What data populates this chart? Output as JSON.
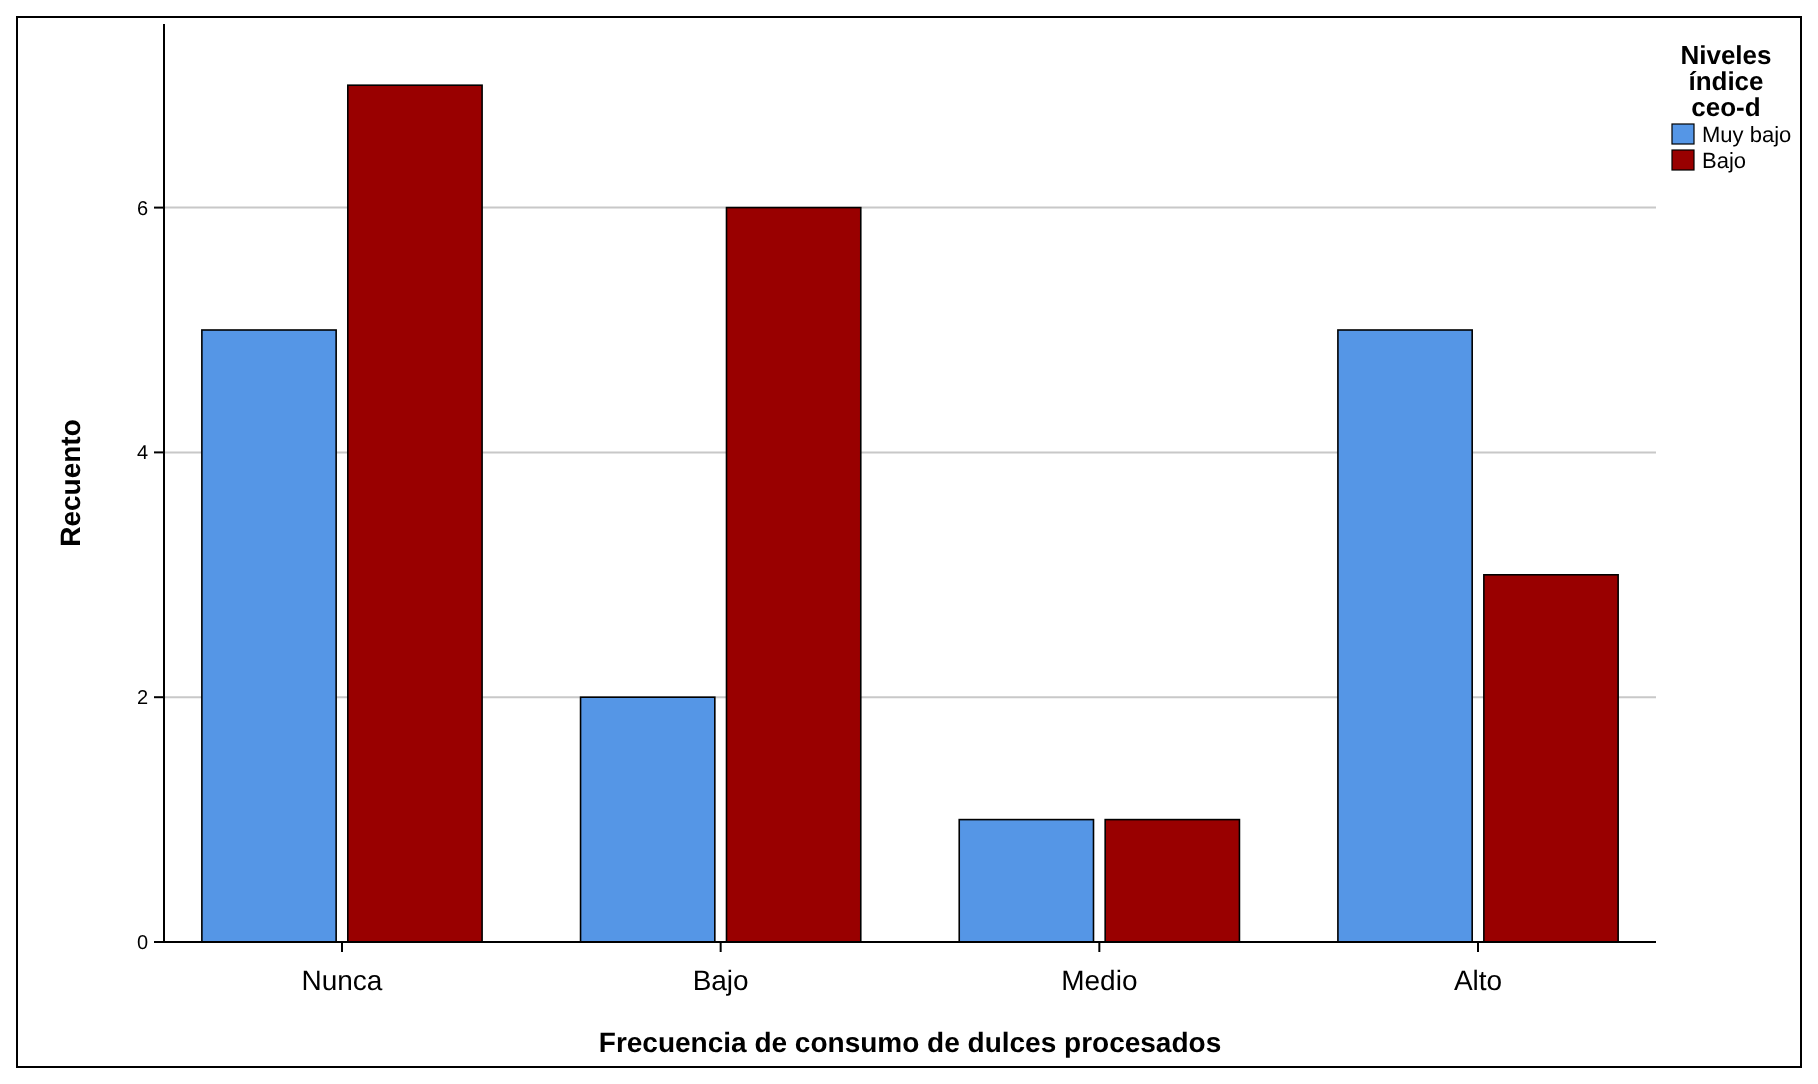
{
  "chart_data": {
    "type": "bar",
    "xlabel": "Frecuencia de consumo de dulces procesados",
    "ylabel": "Recuento",
    "legend_title": "Niveles índice ceo-d",
    "categories": [
      "Nunca",
      "Bajo",
      "Medio",
      "Alto"
    ],
    "series": [
      {
        "name": "Muy bajo",
        "color": "#5596e6",
        "values": [
          5,
          2,
          1,
          5
        ]
      },
      {
        "name": "Bajo",
        "color": "#990000",
        "values": [
          7,
          6,
          1,
          3
        ]
      }
    ],
    "ylim": [
      0,
      7.5
    ],
    "yticks": [
      0,
      2,
      4,
      6
    ],
    "grid": "y",
    "legend": "right"
  }
}
